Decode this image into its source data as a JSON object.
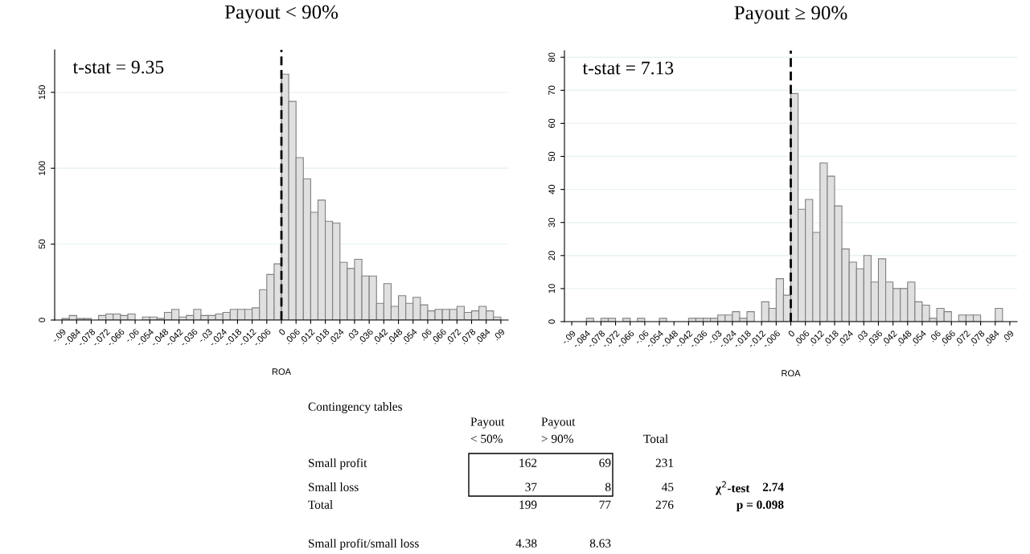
{
  "chart_data": [
    {
      "type": "histogram",
      "title": "Payout < 90%",
      "xlabel": "ROA",
      "color": "#e0e0e0",
      "grid": "y",
      "bins": [
        -0.09,
        -0.087,
        -0.084,
        -0.081,
        -0.078,
        -0.075,
        -0.072,
        -0.069,
        -0.066,
        -0.063,
        -0.06,
        -0.057,
        -0.054,
        -0.051,
        -0.048,
        -0.045,
        -0.042,
        -0.039,
        -0.036,
        -0.033,
        -0.03,
        -0.027,
        -0.024,
        -0.021,
        -0.018,
        -0.015,
        -0.012,
        -0.009,
        -0.006,
        -0.003,
        0,
        0.003,
        0.006,
        0.009,
        0.012,
        0.015,
        0.018,
        0.021,
        0.024,
        0.027,
        0.03,
        0.033,
        0.036,
        0.039,
        0.042,
        0.045,
        0.048,
        0.051,
        0.054,
        0.057,
        0.06,
        0.063,
        0.066,
        0.069,
        0.072,
        0.075,
        0.078,
        0.081,
        0.084,
        0.087,
        0.09
      ],
      "values": [
        1,
        3,
        1,
        1,
        0,
        3,
        4,
        4,
        3,
        4,
        0,
        2,
        2,
        1,
        5,
        7,
        2,
        3,
        7,
        3,
        3,
        4,
        5,
        7,
        7,
        7,
        8,
        20,
        30,
        37,
        162,
        144,
        107,
        93,
        71,
        79,
        65,
        64,
        38,
        34,
        40,
        29,
        29,
        11,
        24,
        9,
        16,
        11,
        15,
        10,
        6,
        7,
        7,
        7,
        9,
        5,
        6,
        9,
        6,
        2
      ],
      "xlim": [
        -0.093,
        0.093
      ],
      "ylim": [
        0,
        178
      ],
      "yticks": [
        0,
        50,
        100,
        150
      ],
      "xticks": [
        {
          "value": -0.09,
          "label": "-.09"
        },
        {
          "value": -0.084,
          "label": "-.084"
        },
        {
          "value": -0.078,
          "label": "-.078"
        },
        {
          "value": -0.072,
          "label": "-.072"
        },
        {
          "value": -0.066,
          "label": "-.066"
        },
        {
          "value": -0.06,
          "label": "-.06"
        },
        {
          "value": -0.054,
          "label": "-.054"
        },
        {
          "value": -0.048,
          "label": "-.048"
        },
        {
          "value": -0.042,
          "label": "-.042"
        },
        {
          "value": -0.036,
          "label": "-.036"
        },
        {
          "value": -0.03,
          "label": "-.03"
        },
        {
          "value": -0.024,
          "label": "-.024"
        },
        {
          "value": -0.018,
          "label": "-.018"
        },
        {
          "value": -0.012,
          "label": "-.012"
        },
        {
          "value": -0.006,
          "label": "-.006"
        },
        0,
        {
          "value": 0.006,
          "label": ".006"
        },
        {
          "value": 0.012,
          "label": ".012"
        },
        {
          "value": 0.018,
          "label": ".018"
        },
        {
          "value": 0.024,
          "label": ".024"
        },
        {
          "value": 0.03,
          "label": ".03"
        },
        {
          "value": 0.036,
          "label": ".036"
        },
        {
          "value": 0.042,
          "label": ".042"
        },
        {
          "value": 0.048,
          "label": ".048"
        },
        {
          "value": 0.054,
          "label": ".054"
        },
        {
          "value": 0.06,
          "label": ".06"
        },
        {
          "value": 0.066,
          "label": ".066"
        },
        {
          "value": 0.072,
          "label": ".072"
        },
        {
          "value": 0.078,
          "label": ".078"
        },
        {
          "value": 0.084,
          "label": ".084"
        },
        {
          "value": 0.09,
          "label": ".09"
        }
      ],
      "ref_lines": [
        {
          "axis": "x",
          "value": 0,
          "color": "#000000",
          "line_style": "dashed"
        }
      ],
      "annotations": [
        "t-stat = 9.35"
      ]
    },
    {
      "type": "histogram",
      "title": "Payout ≥ 90%",
      "xlabel": "ROA",
      "color": "#e0e0e0",
      "grid": "y",
      "bins": [
        -0.09,
        -0.087,
        -0.084,
        -0.081,
        -0.078,
        -0.075,
        -0.072,
        -0.069,
        -0.066,
        -0.063,
        -0.06,
        -0.057,
        -0.054,
        -0.051,
        -0.048,
        -0.045,
        -0.042,
        -0.039,
        -0.036,
        -0.033,
        -0.03,
        -0.027,
        -0.024,
        -0.021,
        -0.018,
        -0.015,
        -0.012,
        -0.009,
        -0.006,
        -0.003,
        0,
        0.003,
        0.006,
        0.009,
        0.012,
        0.015,
        0.018,
        0.021,
        0.024,
        0.027,
        0.03,
        0.033,
        0.036,
        0.039,
        0.042,
        0.045,
        0.048,
        0.051,
        0.054,
        0.057,
        0.06,
        0.063,
        0.066,
        0.069,
        0.072,
        0.075,
        0.078,
        0.081,
        0.084,
        0.087,
        0.09
      ],
      "values": [
        0,
        0,
        1,
        0,
        1,
        1,
        0,
        1,
        0,
        1,
        0,
        0,
        1,
        0,
        0,
        0,
        1,
        1,
        1,
        1,
        2,
        2,
        3,
        1,
        3,
        0,
        6,
        4,
        13,
        8,
        69,
        34,
        37,
        27,
        48,
        44,
        35,
        22,
        18,
        16,
        20,
        12,
        19,
        12,
        10,
        10,
        12,
        6,
        5,
        1,
        4,
        3,
        0,
        2,
        2,
        2,
        0,
        0,
        4,
        0
      ],
      "xlim": [
        -0.093,
        0.093
      ],
      "ylim": [
        0,
        82
      ],
      "yticks": [
        0,
        10,
        20,
        30,
        40,
        50,
        60,
        70,
        80
      ],
      "xticks": [
        {
          "value": -0.09,
          "label": "-.09"
        },
        {
          "value": -0.084,
          "label": "-.084"
        },
        {
          "value": -0.078,
          "label": "-.078"
        },
        {
          "value": -0.072,
          "label": "-.072"
        },
        {
          "value": -0.066,
          "label": "-.066"
        },
        {
          "value": -0.06,
          "label": "-.06"
        },
        {
          "value": -0.054,
          "label": "-.054"
        },
        {
          "value": -0.048,
          "label": "-.048"
        },
        {
          "value": -0.042,
          "label": "-.042"
        },
        {
          "value": -0.036,
          "label": "-.036"
        },
        {
          "value": -0.03,
          "label": "-.03"
        },
        {
          "value": -0.024,
          "label": "-.024"
        },
        {
          "value": -0.018,
          "label": "-.018"
        },
        {
          "value": -0.012,
          "label": "-.012"
        },
        {
          "value": -0.006,
          "label": "-.006"
        },
        0,
        {
          "value": 0.006,
          "label": ".006"
        },
        {
          "value": 0.012,
          "label": ".012"
        },
        {
          "value": 0.018,
          "label": ".018"
        },
        {
          "value": 0.024,
          "label": ".024"
        },
        {
          "value": 0.03,
          "label": ".03"
        },
        {
          "value": 0.036,
          "label": ".036"
        },
        {
          "value": 0.042,
          "label": ".042"
        },
        {
          "value": 0.048,
          "label": ".048"
        },
        {
          "value": 0.054,
          "label": ".054"
        },
        {
          "value": 0.06,
          "label": ".06"
        },
        {
          "value": 0.066,
          "label": ".066"
        },
        {
          "value": 0.072,
          "label": ".072"
        },
        {
          "value": 0.078,
          "label": ".078"
        },
        {
          "value": 0.084,
          "label": ".084"
        },
        {
          "value": 0.09,
          "label": ".09"
        }
      ],
      "ref_lines": [
        {
          "axis": "x",
          "value": 0,
          "color": "#000000",
          "line_style": "dashed"
        }
      ],
      "annotations": [
        "t-stat = 7.13"
      ]
    },
    {
      "type": "other",
      "title": "Contingency tables",
      "data_labels": true,
      "categories": [
        "Small profit",
        "Small loss",
        "Total",
        "Small profit/small loss"
      ],
      "series": [
        {
          "name": "Payout\n< 50%",
          "values": [
            162,
            37,
            199,
            4.38
          ]
        },
        {
          "name": "Payout\n> 90%",
          "values": [
            69,
            8,
            77,
            8.63
          ]
        },
        {
          "name": "Total",
          "values": [
            231,
            45,
            276,
            null
          ]
        }
      ],
      "annotations": [
        "χ$^{2}$-test",
        "2.74",
        "p = 0.098"
      ]
    }
  ]
}
